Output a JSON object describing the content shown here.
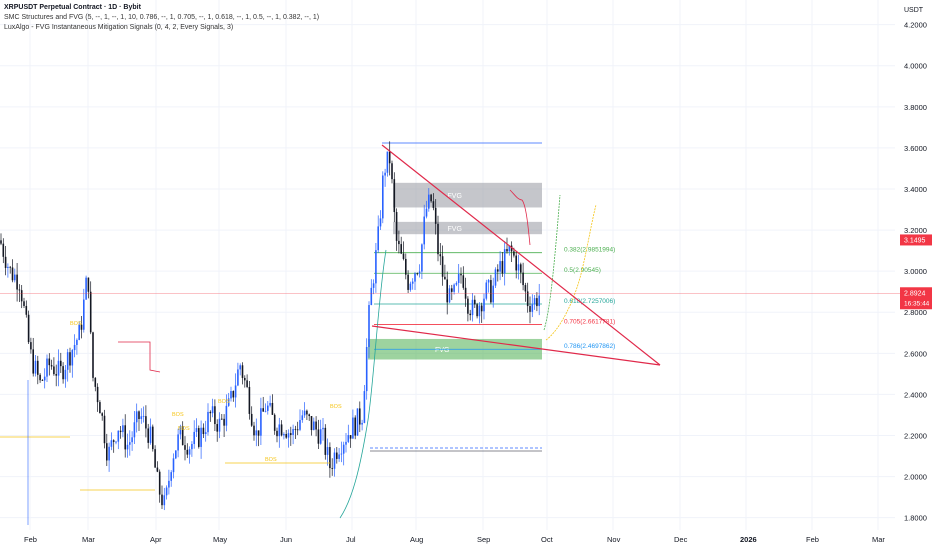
{
  "header": {
    "title": "XRPUSDT Perpetual Contract · 1D · Bybit",
    "indicator_1": "SMC Structures and FVG (5, --, 1, --, 1, 10, 0.786, --, 1, 0.705, --, 1, 0.618, --, 1, 0.5, --, 1, 0.382, --, 1)",
    "indicator_2": "LuxAlgo - FVG Instantaneous Mitigation Signals (0, 4, 2, Every Signals, 3)"
  },
  "price_axis": {
    "currency": "USDT",
    "ticks": [
      "4.2000",
      "4.0000",
      "3.8000",
      "3.6000",
      "3.4000",
      "3.2000",
      "3.0000",
      "2.8000",
      "2.6000",
      "2.4000",
      "2.2000",
      "2.0000",
      "1.8000"
    ],
    "tick_values": [
      4.2,
      4.0,
      3.8,
      3.6,
      3.4,
      3.2,
      3.0,
      2.8,
      2.6,
      2.4,
      2.2,
      2.0,
      1.8
    ],
    "range": [
      1.74,
      4.32
    ],
    "current_price": "2.8924",
    "current_price_value": 2.8924,
    "countdown": "16:35:44",
    "red_label": "3.1495",
    "red_label_value": 3.1495,
    "current_color": "#f23645",
    "red_label_color": "#f23645"
  },
  "time_axis": {
    "labels": [
      "Feb",
      "Mar",
      "Apr",
      "May",
      "Jun",
      "Jul",
      "Aug",
      "Sep",
      "Oct",
      "Nov",
      "Dec",
      "2026",
      "Feb",
      "Mar"
    ],
    "bold_label": "2026"
  },
  "fib_levels": [
    {
      "label": "0.382(2.9851994)",
      "price": 3.09,
      "color": "#4caf50"
    },
    {
      "label": "0.5(2.90545)",
      "price": 2.99,
      "color": "#4caf50"
    },
    {
      "label": "0.618(2.7257006)",
      "price": 2.84,
      "color": "#26a69a"
    },
    {
      "label": "0.705(2.6617781)",
      "price": 2.74,
      "color": "#f23645"
    },
    {
      "label": "0.786(2.4697862)",
      "price": 2.62,
      "color": "#2196f3"
    }
  ],
  "zones": [
    {
      "label": "FVG",
      "price_top": 3.43,
      "price_bottom": 3.31,
      "color": "#9598a1"
    },
    {
      "label": "FVG",
      "price_top": 3.24,
      "price_bottom": 3.18,
      "color": "#9598a1"
    },
    {
      "label": "FVG",
      "price_top": 2.67,
      "price_bottom": 2.57,
      "color": "#4caf50"
    }
  ],
  "structure_labels": [
    "BOS",
    "BOS",
    "BOS",
    "BOS",
    "BOS",
    "BOS"
  ],
  "colors": {
    "up": "#2962ff",
    "down": "#131722",
    "wedge": "#e0294a",
    "grid": "#f0f3fa"
  }
}
